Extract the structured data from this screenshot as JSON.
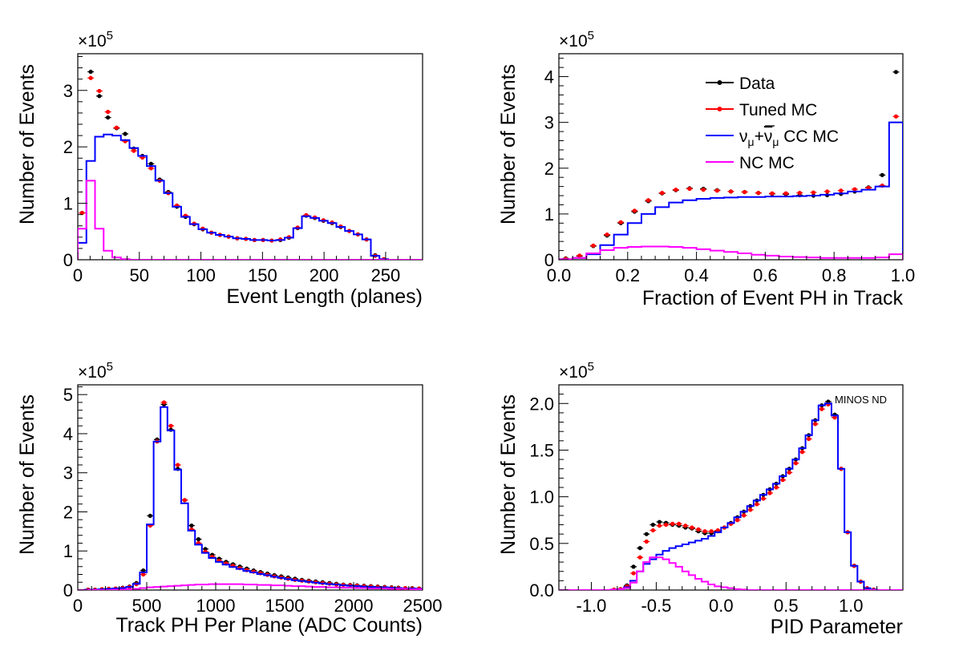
{
  "chart_data": [
    {
      "id": "event-length",
      "type": "line",
      "xlabel": "Event Length (planes)",
      "ylabel": "Number of Events",
      "y_multiplier": "×10^5",
      "xlim": [
        0,
        280
      ],
      "ylim": [
        0,
        3.65
      ],
      "x_ticks": [
        0,
        50,
        100,
        150,
        200,
        250
      ],
      "x_tick_labels": [
        "0",
        "50",
        "100",
        "150",
        "200",
        "250"
      ],
      "y_ticks": [
        0,
        1,
        2,
        3
      ],
      "y_tick_labels": [
        "0",
        "1",
        "2",
        "3"
      ],
      "bin_edges": [
        0,
        7,
        14,
        21,
        28,
        35,
        42,
        49,
        56,
        63,
        70,
        77,
        84,
        91,
        98,
        105,
        112,
        119,
        126,
        133,
        140,
        147,
        154,
        161,
        168,
        175,
        182,
        189,
        196,
        203,
        210,
        217,
        224,
        231,
        238,
        245,
        252,
        259,
        266,
        273,
        280
      ],
      "series": [
        {
          "name": "Data",
          "style": "points",
          "color": "#000000",
          "values": [
            0.83,
            3.33,
            2.9,
            2.52,
            2.33,
            2.23,
            1.97,
            1.84,
            1.7,
            1.42,
            1.2,
            0.94,
            0.76,
            0.63,
            0.54,
            0.48,
            0.44,
            0.41,
            0.38,
            0.37,
            0.35,
            0.35,
            0.34,
            0.35,
            0.39,
            0.56,
            0.78,
            0.74,
            0.69,
            0.65,
            0.58,
            0.51,
            0.45,
            0.36,
            0.08,
            0.01,
            0,
            0,
            0,
            0
          ]
        },
        {
          "name": "Tuned MC",
          "style": "points",
          "color": "#ff0000",
          "values": [
            0.83,
            3.22,
            2.99,
            2.62,
            2.34,
            2.1,
            1.93,
            1.81,
            1.62,
            1.4,
            1.18,
            0.96,
            0.78,
            0.64,
            0.55,
            0.48,
            0.44,
            0.41,
            0.38,
            0.37,
            0.35,
            0.35,
            0.34,
            0.36,
            0.4,
            0.57,
            0.79,
            0.75,
            0.7,
            0.66,
            0.59,
            0.51,
            0.45,
            0.36,
            0.07,
            0.01,
            0,
            0,
            0,
            0
          ]
        },
        {
          "name": "νμ+ν̄μ CC MC",
          "style": "step",
          "color": "#0000ff",
          "values": [
            0.3,
            1.75,
            2.18,
            2.22,
            2.2,
            2.12,
            1.98,
            1.84,
            1.66,
            1.4,
            1.18,
            0.94,
            0.76,
            0.63,
            0.54,
            0.48,
            0.44,
            0.41,
            0.38,
            0.37,
            0.35,
            0.35,
            0.34,
            0.35,
            0.39,
            0.56,
            0.77,
            0.74,
            0.69,
            0.65,
            0.58,
            0.51,
            0.45,
            0.36,
            0.07,
            0.01,
            0,
            0,
            0,
            0
          ]
        },
        {
          "name": "NC MC",
          "style": "step",
          "color": "#ff00ff",
          "values": [
            0.55,
            1.4,
            0.55,
            0.16,
            0.04,
            0.01,
            0,
            0,
            0,
            0,
            0,
            0,
            0,
            0,
            0,
            0,
            0,
            0,
            0,
            0,
            0,
            0,
            0,
            0,
            0,
            0,
            0,
            0,
            0,
            0,
            0,
            0,
            0,
            0,
            0,
            0,
            0,
            0,
            0,
            0
          ]
        }
      ]
    },
    {
      "id": "fraction-ph",
      "type": "line",
      "xlabel": "Fraction of Event PH in Track",
      "ylabel": "Number of Events",
      "y_multiplier": "×10^5",
      "xlim": [
        0,
        1
      ],
      "ylim": [
        0,
        4.5
      ],
      "x_ticks": [
        0,
        0.2,
        0.4,
        0.6,
        0.8,
        1.0
      ],
      "x_tick_labels": [
        "0.0",
        "0.2",
        "0.4",
        "0.6",
        "0.8",
        "1.0"
      ],
      "y_ticks": [
        0,
        1,
        2,
        3,
        4
      ],
      "y_tick_labels": [
        "0",
        "1",
        "2",
        "3",
        "4"
      ],
      "bin_edges": [
        0,
        0.04,
        0.08,
        0.12,
        0.16,
        0.2,
        0.24,
        0.28,
        0.32,
        0.36,
        0.4,
        0.44,
        0.48,
        0.52,
        0.56,
        0.6,
        0.64,
        0.68,
        0.72,
        0.76,
        0.8,
        0.84,
        0.88,
        0.92,
        0.96,
        1.0
      ],
      "series": [
        {
          "name": "Data",
          "style": "points",
          "color": "#000000",
          "values": [
            0.03,
            0.08,
            0.3,
            0.53,
            0.8,
            1.05,
            1.28,
            1.45,
            1.52,
            1.56,
            1.55,
            1.52,
            1.49,
            1.48,
            1.46,
            1.44,
            1.43,
            1.41,
            1.4,
            1.41,
            1.44,
            1.49,
            1.58,
            1.85,
            4.1
          ]
        },
        {
          "name": "Tuned MC",
          "style": "points",
          "color": "#ff0000",
          "values": [
            0.02,
            0.09,
            0.31,
            0.55,
            0.82,
            1.07,
            1.3,
            1.46,
            1.53,
            1.55,
            1.53,
            1.51,
            1.49,
            1.48,
            1.46,
            1.45,
            1.45,
            1.46,
            1.47,
            1.49,
            1.51,
            1.54,
            1.57,
            1.62,
            3.13
          ]
        },
        {
          "name": "νμ+ν̄μ CC MC",
          "style": "step",
          "color": "#0000ff",
          "values": [
            0.01,
            0.04,
            0.12,
            0.32,
            0.55,
            0.8,
            1.0,
            1.15,
            1.25,
            1.3,
            1.33,
            1.35,
            1.36,
            1.37,
            1.37,
            1.38,
            1.38,
            1.39,
            1.4,
            1.42,
            1.45,
            1.49,
            1.53,
            1.6,
            3.0
          ]
        },
        {
          "name": "NC MC",
          "style": "step",
          "color": "#ff00ff",
          "values": [
            0.01,
            0.04,
            0.14,
            0.21,
            0.26,
            0.28,
            0.29,
            0.29,
            0.28,
            0.26,
            0.23,
            0.2,
            0.17,
            0.14,
            0.11,
            0.09,
            0.07,
            0.06,
            0.05,
            0.04,
            0.04,
            0.04,
            0.04,
            0.05,
            0.12
          ]
        }
      ],
      "legend": {
        "placement": "top-right",
        "entries": [
          {
            "label": "Data",
            "color": "#000000",
            "marker": "point"
          },
          {
            "label": "Tuned MC",
            "color": "#ff0000",
            "marker": "point"
          },
          {
            "label_parts": [
              "ν",
              "μ",
              "+",
              "ν",
              "μ",
              " CC MC"
            ],
            "color": "#0000ff",
            "marker": "line"
          },
          {
            "label": "NC MC",
            "color": "#ff00ff",
            "marker": "line"
          }
        ]
      }
    },
    {
      "id": "track-ph",
      "type": "line",
      "xlabel": "Track PH Per Plane (ADC Counts)",
      "ylabel": "Number of Events",
      "y_multiplier": "×10^5",
      "xlim": [
        0,
        2500
      ],
      "ylim": [
        0,
        5.25
      ],
      "x_ticks": [
        0,
        500,
        1000,
        1500,
        2000,
        2500
      ],
      "x_tick_labels": [
        "0",
        "500",
        "1000",
        "1500",
        "2000",
        "2500"
      ],
      "y_ticks": [
        0,
        1,
        2,
        3,
        4,
        5
      ],
      "y_tick_labels": [
        "0",
        "1",
        "2",
        "3",
        "4",
        "5"
      ],
      "bin_edges": [
        0,
        50,
        100,
        150,
        200,
        250,
        300,
        350,
        400,
        450,
        500,
        550,
        600,
        650,
        700,
        750,
        800,
        850,
        900,
        950,
        1000,
        1050,
        1100,
        1150,
        1200,
        1250,
        1300,
        1350,
        1400,
        1450,
        1500,
        1550,
        1600,
        1650,
        1700,
        1750,
        1800,
        1850,
        1900,
        1950,
        2000,
        2050,
        2100,
        2150,
        2200,
        2250,
        2300,
        2350,
        2400,
        2450,
        2500
      ],
      "series": [
        {
          "name": "Data",
          "style": "points",
          "color": "#000000",
          "values": [
            0,
            0.01,
            0.01,
            0.02,
            0.03,
            0.04,
            0.06,
            0.09,
            0.18,
            0.5,
            1.9,
            3.85,
            4.75,
            4.1,
            3.1,
            2.3,
            1.65,
            1.3,
            1.05,
            0.9,
            0.8,
            0.72,
            0.66,
            0.6,
            0.55,
            0.5,
            0.46,
            0.42,
            0.38,
            0.35,
            0.32,
            0.29,
            0.26,
            0.24,
            0.22,
            0.2,
            0.18,
            0.16,
            0.14,
            0.13,
            0.12,
            0.11,
            0.1,
            0.09,
            0.08,
            0.07,
            0.06,
            0.05,
            0.05,
            0.04
          ]
        },
        {
          "name": "Tuned MC",
          "style": "points",
          "color": "#ff0000",
          "values": [
            0,
            0.01,
            0.01,
            0.02,
            0.03,
            0.04,
            0.05,
            0.08,
            0.15,
            0.4,
            1.65,
            3.8,
            4.8,
            4.2,
            3.2,
            2.3,
            1.55,
            1.2,
            0.98,
            0.85,
            0.75,
            0.68,
            0.62,
            0.56,
            0.51,
            0.47,
            0.43,
            0.39,
            0.35,
            0.32,
            0.29,
            0.26,
            0.24,
            0.22,
            0.2,
            0.18,
            0.16,
            0.14,
            0.13,
            0.12,
            0.11,
            0.1,
            0.09,
            0.08,
            0.07,
            0.06,
            0.05,
            0.05,
            0.04,
            0.04
          ]
        },
        {
          "name": "νμ+ν̄μ CC MC",
          "style": "step",
          "color": "#0000ff",
          "values": [
            0,
            0.01,
            0.01,
            0.02,
            0.03,
            0.04,
            0.05,
            0.08,
            0.16,
            0.45,
            1.68,
            3.8,
            4.68,
            4.08,
            3.08,
            2.22,
            1.52,
            1.16,
            0.95,
            0.82,
            0.72,
            0.65,
            0.59,
            0.54,
            0.49,
            0.45,
            0.41,
            0.38,
            0.34,
            0.31,
            0.28,
            0.25,
            0.23,
            0.21,
            0.19,
            0.17,
            0.15,
            0.14,
            0.12,
            0.11,
            0.1,
            0.09,
            0.08,
            0.07,
            0.07,
            0.06,
            0.05,
            0.04,
            0.04,
            0.03
          ]
        },
        {
          "name": "NC MC",
          "style": "step",
          "color": "#ff00ff",
          "values": [
            0,
            0,
            0,
            0,
            0,
            0.01,
            0.01,
            0.02,
            0.03,
            0.05,
            0.07,
            0.08,
            0.09,
            0.1,
            0.11,
            0.12,
            0.13,
            0.14,
            0.14,
            0.15,
            0.15,
            0.15,
            0.15,
            0.15,
            0.14,
            0.14,
            0.13,
            0.13,
            0.12,
            0.12,
            0.11,
            0.1,
            0.1,
            0.09,
            0.08,
            0.08,
            0.07,
            0.07,
            0.06,
            0.06,
            0.05,
            0.05,
            0.04,
            0.04,
            0.04,
            0.03,
            0.03,
            0.03,
            0.02,
            0.02
          ]
        }
      ]
    },
    {
      "id": "pid-parameter",
      "type": "line",
      "xlabel": "PID Parameter",
      "ylabel": "Number of Events",
      "y_multiplier": "×10^5",
      "annotation": "MINOS ND",
      "xlim": [
        -1.25,
        1.4
      ],
      "ylim": [
        0,
        2.2
      ],
      "x_ticks": [
        -1.0,
        -0.5,
        0.0,
        0.5,
        1.0
      ],
      "x_tick_labels": [
        "-1.0",
        "-0.5",
        "0.0",
        "0.5",
        "1.0"
      ],
      "y_ticks": [
        0,
        0.5,
        1.0,
        1.5,
        2.0
      ],
      "y_tick_labels": [
        "0.0",
        "0.5",
        "1.0",
        "1.5",
        "2.0"
      ],
      "bin_edges": [
        -1.25,
        -1.2,
        -1.15,
        -1.1,
        -1.05,
        -1.0,
        -0.95,
        -0.9,
        -0.85,
        -0.8,
        -0.75,
        -0.7,
        -0.65,
        -0.6,
        -0.55,
        -0.5,
        -0.45,
        -0.4,
        -0.35,
        -0.3,
        -0.25,
        -0.2,
        -0.15,
        -0.1,
        -0.05,
        0.0,
        0.05,
        0.1,
        0.15,
        0.2,
        0.25,
        0.3,
        0.35,
        0.4,
        0.45,
        0.5,
        0.55,
        0.6,
        0.65,
        0.7,
        0.75,
        0.8,
        0.85,
        0.9,
        0.95,
        1.0,
        1.05,
        1.1,
        1.15,
        1.2,
        1.25,
        1.3,
        1.35,
        1.4
      ],
      "series": [
        {
          "name": "Data",
          "style": "points",
          "color": "#000000",
          "values": [
            0,
            0,
            0,
            0,
            0,
            0,
            0,
            0,
            0.005,
            0.01,
            0.05,
            0.25,
            0.45,
            0.6,
            0.7,
            0.73,
            0.72,
            0.7,
            0.69,
            0.67,
            0.66,
            0.63,
            0.61,
            0.61,
            0.63,
            0.67,
            0.72,
            0.78,
            0.84,
            0.9,
            0.96,
            1.02,
            1.08,
            1.14,
            1.22,
            1.3,
            1.4,
            1.52,
            1.66,
            1.82,
            1.98,
            2.02,
            1.88,
            1.3,
            0.62,
            0.26,
            0.09,
            0.02,
            0.005,
            0,
            0,
            0,
            0
          ]
        },
        {
          "name": "Tuned MC",
          "style": "points",
          "color": "#ff0000",
          "values": [
            0,
            0,
            0,
            0,
            0,
            0,
            0,
            0,
            0.005,
            0.01,
            0.04,
            0.18,
            0.35,
            0.52,
            0.64,
            0.69,
            0.7,
            0.71,
            0.71,
            0.69,
            0.67,
            0.65,
            0.63,
            0.63,
            0.64,
            0.67,
            0.71,
            0.75,
            0.8,
            0.86,
            0.92,
            0.98,
            1.04,
            1.1,
            1.18,
            1.26,
            1.36,
            1.48,
            1.62,
            1.78,
            1.94,
            1.99,
            1.85,
            1.3,
            0.62,
            0.26,
            0.09,
            0.02,
            0.005,
            0,
            0,
            0,
            0
          ]
        },
        {
          "name": "νμ+ν̄μ CC MC",
          "style": "step",
          "color": "#0000ff",
          "values": [
            0,
            0,
            0,
            0,
            0,
            0,
            0,
            0,
            0.005,
            0.01,
            0.03,
            0.1,
            0.2,
            0.28,
            0.33,
            0.38,
            0.42,
            0.45,
            0.47,
            0.49,
            0.51,
            0.53,
            0.55,
            0.58,
            0.62,
            0.67,
            0.72,
            0.78,
            0.84,
            0.9,
            0.96,
            1.02,
            1.08,
            1.14,
            1.22,
            1.3,
            1.4,
            1.52,
            1.66,
            1.82,
            1.98,
            2.0,
            1.87,
            1.3,
            0.62,
            0.26,
            0.09,
            0.02,
            0.005,
            0,
            0,
            0,
            0
          ]
        },
        {
          "name": "NC MC",
          "style": "step",
          "color": "#ff00ff",
          "values": [
            0,
            0,
            0,
            0,
            0,
            0,
            0,
            0,
            0.005,
            0.01,
            0.02,
            0.08,
            0.2,
            0.3,
            0.35,
            0.35,
            0.33,
            0.29,
            0.25,
            0.2,
            0.16,
            0.12,
            0.09,
            0.06,
            0.04,
            0.03,
            0.02,
            0.01,
            0.005,
            0,
            0,
            0,
            0,
            0,
            0,
            0,
            0,
            0,
            0,
            0,
            0,
            0,
            0,
            0,
            0,
            0,
            0,
            0,
            0,
            0,
            0,
            0,
            0
          ]
        }
      ]
    }
  ]
}
